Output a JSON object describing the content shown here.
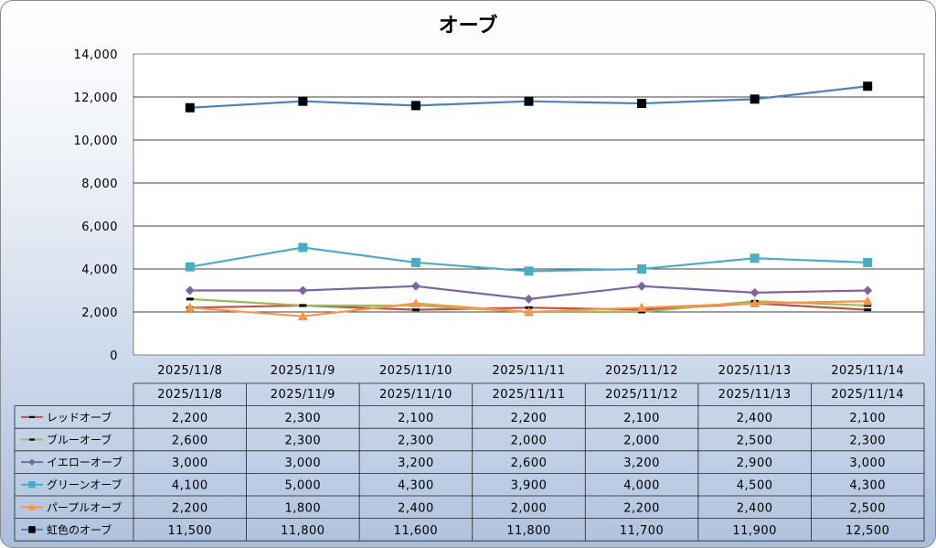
{
  "chart_data": {
    "type": "line",
    "title": "オーブ",
    "categories": [
      "2025/11/8",
      "2025/11/9",
      "2025/11/10",
      "2025/11/11",
      "2025/11/12",
      "2025/11/13",
      "2025/11/14"
    ],
    "ylim": [
      0,
      14000
    ],
    "yticks": [
      "0",
      "2,000",
      "4,000",
      "6,000",
      "8,000",
      "10,000",
      "12,000",
      "14,000"
    ],
    "grid": true,
    "legend_placement": "data-table",
    "series": [
      {
        "name": "レッドオーブ",
        "color": "#c0504d",
        "marker": "dash",
        "values": [
          2200,
          2300,
          2100,
          2200,
          2100,
          2400,
          2100
        ],
        "labels": [
          "2,200",
          "2,300",
          "2,100",
          "2,200",
          "2,100",
          "2,400",
          "2,100"
        ]
      },
      {
        "name": "ブルーオーブ",
        "color": "#9bbb59",
        "marker": "dash",
        "values": [
          2600,
          2300,
          2300,
          2000,
          2000,
          2500,
          2300
        ],
        "labels": [
          "2,600",
          "2,300",
          "2,300",
          "2,000",
          "2,000",
          "2,500",
          "2,300"
        ]
      },
      {
        "name": "イエローオーブ",
        "color": "#8064a2",
        "marker": "diamond",
        "values": [
          3000,
          3000,
          3200,
          2600,
          3200,
          2900,
          3000
        ],
        "labels": [
          "3,000",
          "3,000",
          "3,200",
          "2,600",
          "3,200",
          "2,900",
          "3,000"
        ]
      },
      {
        "name": "グリーンオーブ",
        "color": "#4bacc6",
        "marker": "square",
        "values": [
          4100,
          5000,
          4300,
          3900,
          4000,
          4500,
          4300
        ],
        "labels": [
          "4,100",
          "5,000",
          "4,300",
          "3,900",
          "4,000",
          "4,500",
          "4,300"
        ]
      },
      {
        "name": "パープルオーブ",
        "color": "#f79646",
        "marker": "triangle",
        "values": [
          2200,
          1800,
          2400,
          2000,
          2200,
          2400,
          2500
        ],
        "labels": [
          "2,200",
          "1,800",
          "2,400",
          "2,000",
          "2,200",
          "2,400",
          "2,500"
        ]
      },
      {
        "name": "虹色のオーブ",
        "color": "#4f81bd",
        "marker": "square-black",
        "values": [
          11500,
          11800,
          11600,
          11800,
          11700,
          11900,
          12500
        ],
        "labels": [
          "11,500",
          "11,800",
          "11,600",
          "11,800",
          "11,700",
          "11,900",
          "12,500"
        ]
      }
    ]
  }
}
